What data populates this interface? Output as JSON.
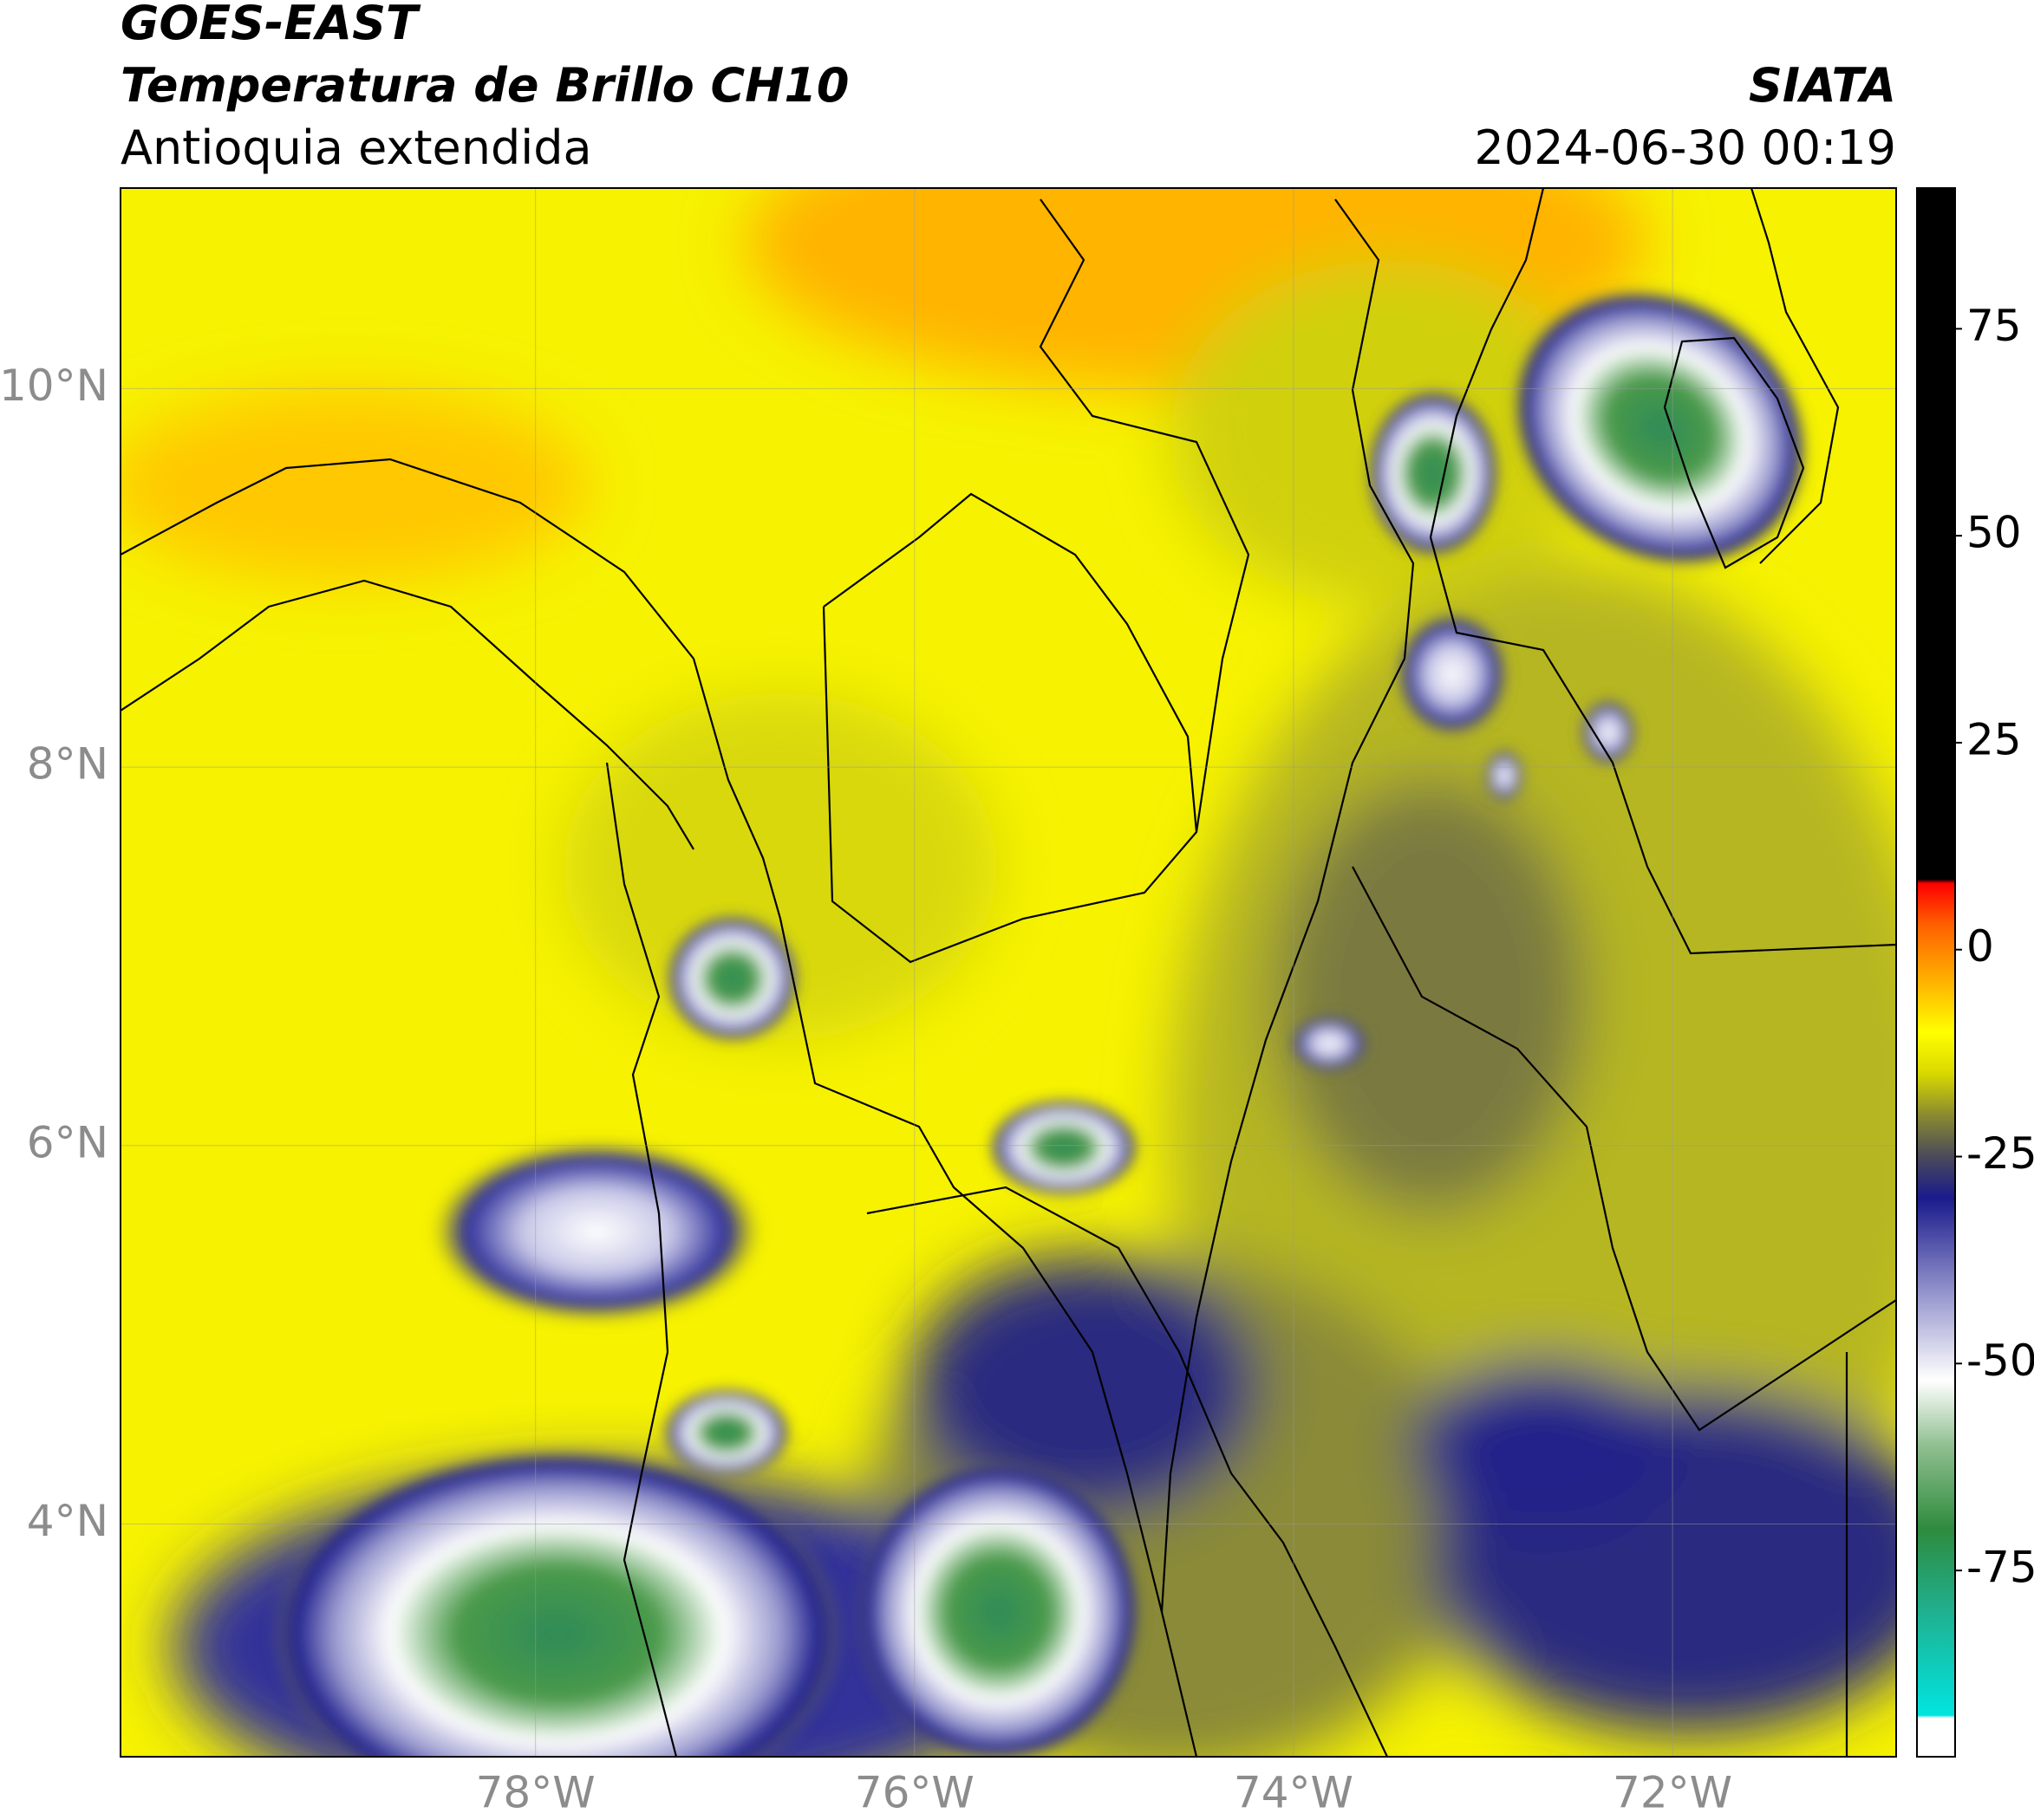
{
  "header": {
    "satellite": "GOES-EAST",
    "product": "Temperatura de Brillo CH10",
    "region": "Antioquia extendida",
    "agency": "SIATA",
    "timestamp": "2024-06-30 00:19"
  },
  "map": {
    "xlim": [
      -80.19,
      -70.82
    ],
    "ylim": [
      2.77,
      11.06
    ],
    "grid": true,
    "xticks": [
      {
        "value": -78,
        "label": "78°W"
      },
      {
        "value": -76,
        "label": "76°W"
      },
      {
        "value": -74,
        "label": "74°W"
      },
      {
        "value": -72,
        "label": "72°W"
      }
    ],
    "yticks": [
      {
        "value": 4,
        "label": "4°N"
      },
      {
        "value": 6,
        "label": "6°N"
      },
      {
        "value": 8,
        "label": "8°N"
      },
      {
        "value": 10,
        "label": "10°N"
      }
    ]
  },
  "colorbar": {
    "lim": [
      -97.5,
      92
    ],
    "ticks": [
      -75,
      -50,
      -25,
      0,
      25,
      50,
      75
    ],
    "stops": [
      {
        "value": -97.5,
        "color": "#ffffff"
      },
      {
        "value": -92.8,
        "color": "#ffffff"
      },
      {
        "value": -92.5,
        "color": "#00e5e0"
      },
      {
        "value": -80,
        "color": "#20b090"
      },
      {
        "value": -70,
        "color": "#2e8b3e"
      },
      {
        "value": -60,
        "color": "#8fbf8f"
      },
      {
        "value": -52,
        "color": "#ffffff"
      },
      {
        "value": -42,
        "color": "#9a9ad0"
      },
      {
        "value": -30,
        "color": "#1a1a8c"
      },
      {
        "value": -25,
        "color": "#4a4a5a"
      },
      {
        "value": -20,
        "color": "#8a8a30"
      },
      {
        "value": -15,
        "color": "#d8d800"
      },
      {
        "value": -10,
        "color": "#ffff00"
      },
      {
        "value": -5,
        "color": "#ffc000"
      },
      {
        "value": 3,
        "color": "#ff6000"
      },
      {
        "value": 8,
        "color": "#ff0000"
      },
      {
        "value": 8.5,
        "color": "#000000"
      },
      {
        "value": 92,
        "color": "#000000"
      }
    ]
  }
}
